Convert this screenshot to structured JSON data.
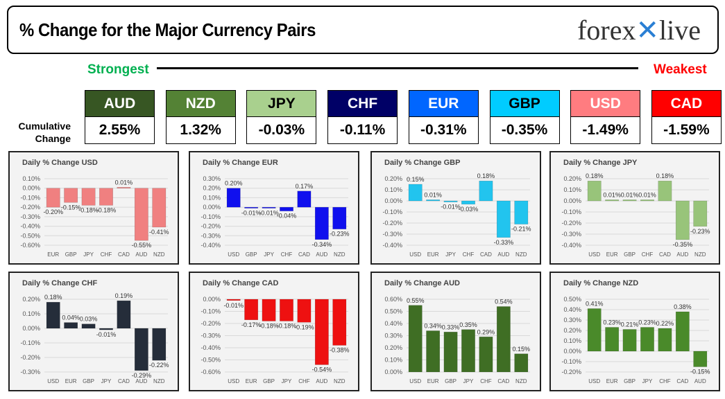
{
  "header": {
    "title": "% Change for the Major Currency Pairs",
    "logo_text": "forexlive"
  },
  "labels": {
    "strongest": "Strongest",
    "weakest": "Weakest",
    "cumulative_line1": "Cumulative",
    "cumulative_line2": "Change"
  },
  "currencies": [
    {
      "code": "AUD",
      "value": "2.55%",
      "color": "#375623",
      "text": "#ffffff"
    },
    {
      "code": "NZD",
      "value": "1.32%",
      "color": "#548235",
      "text": "#ffffff"
    },
    {
      "code": "JPY",
      "value": "-0.03%",
      "color": "#a9d08e",
      "text": "#000000"
    },
    {
      "code": "CHF",
      "value": "-0.11%",
      "color": "#000066",
      "text": "#ffffff"
    },
    {
      "code": "EUR",
      "value": "-0.31%",
      "color": "#0066ff",
      "text": "#ffffff"
    },
    {
      "code": "GBP",
      "value": "-0.35%",
      "color": "#00ccff",
      "text": "#000000"
    },
    {
      "code": "USD",
      "value": "-1.49%",
      "color": "#ff7c80",
      "text": "#ffffff"
    },
    {
      "code": "CAD",
      "value": "-1.59%",
      "color": "#ff0000",
      "text": "#ffffff"
    }
  ],
  "chart_data": [
    {
      "type": "bar",
      "title": "Daily % Change USD",
      "categories": [
        "EUR",
        "GBP",
        "JPY",
        "CHF",
        "CAD",
        "AUD",
        "NZD"
      ],
      "values": [
        -0.2,
        -0.15,
        -0.18,
        -0.18,
        0.01,
        -0.55,
        -0.41
      ],
      "labels": [
        "-0.20%",
        "-0.15%",
        "-0.18%",
        "-0.18%",
        "0.01%",
        "-0.55%",
        "-0.41%"
      ],
      "ylim": [
        -0.6,
        0.1
      ],
      "yticks": [
        "0.10%",
        "0.00%",
        "-0.10%",
        "-0.20%",
        "-0.30%",
        "-0.40%",
        "-0.50%",
        "-0.60%"
      ],
      "color": "#f08080",
      "grid": true
    },
    {
      "type": "bar",
      "title": "Daily % Change EUR",
      "categories": [
        "USD",
        "GBP",
        "JPY",
        "CHF",
        "CAD",
        "AUD",
        "NZD"
      ],
      "values": [
        0.2,
        -0.01,
        -0.01,
        -0.04,
        0.17,
        -0.34,
        -0.23
      ],
      "labels": [
        "0.20%",
        "-0.01%",
        "-0.01%",
        "-0.04%",
        "0.17%",
        "-0.34%",
        "-0.23%"
      ],
      "ylim": [
        -0.4,
        0.3
      ],
      "yticks": [
        "0.30%",
        "0.20%",
        "0.10%",
        "0.00%",
        "-0.10%",
        "-0.20%",
        "-0.30%",
        "-0.40%"
      ],
      "color": "#1010ee",
      "grid": true
    },
    {
      "type": "bar",
      "title": "Daily % Change GBP",
      "categories": [
        "USD",
        "EUR",
        "JPY",
        "CHF",
        "CAD",
        "AUD",
        "NZD"
      ],
      "values": [
        0.15,
        0.01,
        -0.01,
        -0.03,
        0.18,
        -0.33,
        -0.21
      ],
      "labels": [
        "0.15%",
        "0.01%",
        "-0.01%",
        "-0.03%",
        "0.18%",
        "-0.33%",
        "-0.21%"
      ],
      "ylim": [
        -0.4,
        0.2
      ],
      "yticks": [
        "0.20%",
        "0.10%",
        "0.00%",
        "-0.10%",
        "-0.20%",
        "-0.30%",
        "-0.40%"
      ],
      "color": "#22c4ee",
      "grid": true
    },
    {
      "type": "bar",
      "title": "Daily % Change JPY",
      "categories": [
        "USD",
        "EUR",
        "GBP",
        "CHF",
        "CAD",
        "AUD",
        "NZD"
      ],
      "values": [
        0.18,
        0.01,
        0.01,
        0.01,
        0.18,
        -0.35,
        -0.23
      ],
      "labels": [
        "0.18%",
        "0.01%",
        "0.01%",
        "0.01%",
        "0.18%",
        "-0.35%",
        "-0.23%"
      ],
      "ylim": [
        -0.4,
        0.2
      ],
      "yticks": [
        "0.20%",
        "0.10%",
        "0.00%",
        "-0.10%",
        "-0.20%",
        "-0.30%",
        "-0.40%"
      ],
      "color": "#98c47a",
      "grid": true
    },
    {
      "type": "bar",
      "title": "Daily % Change CHF",
      "categories": [
        "USD",
        "EUR",
        "GBP",
        "JPY",
        "CAD",
        "AUD",
        "NZD"
      ],
      "values": [
        0.18,
        0.04,
        0.03,
        -0.01,
        0.19,
        -0.29,
        -0.22
      ],
      "labels": [
        "0.18%",
        "0.04%",
        "0.03%",
        "-0.01%",
        "0.19%",
        "-0.29%",
        "-0.22%"
      ],
      "ylim": [
        -0.3,
        0.2
      ],
      "yticks": [
        "0.20%",
        "0.10%",
        "0.00%",
        "-0.10%",
        "-0.20%",
        "-0.30%"
      ],
      "color": "#252d3a",
      "grid": true
    },
    {
      "type": "bar",
      "title": "Daily % Change CAD",
      "categories": [
        "USD",
        "EUR",
        "GBP",
        "JPY",
        "CHF",
        "AUD",
        "NZD"
      ],
      "values": [
        -0.01,
        -0.17,
        -0.18,
        -0.18,
        -0.19,
        -0.54,
        -0.38
      ],
      "labels": [
        "-0.01%",
        "-0.17%",
        "-0.18%",
        "-0.18%",
        "-0.19%",
        "-0.54%",
        "-0.38%"
      ],
      "ylim": [
        -0.6,
        0.0
      ],
      "yticks": [
        "0.00%",
        "-0.10%",
        "-0.20%",
        "-0.30%",
        "-0.40%",
        "-0.50%",
        "-0.60%"
      ],
      "color": "#ee1111",
      "grid": true
    },
    {
      "type": "bar",
      "title": "Daily % Change AUD",
      "categories": [
        "USD",
        "EUR",
        "GBP",
        "JPY",
        "CHF",
        "CAD",
        "NZD"
      ],
      "values": [
        0.55,
        0.34,
        0.33,
        0.35,
        0.29,
        0.54,
        0.15
      ],
      "labels": [
        "0.55%",
        "0.34%",
        "0.33%",
        "0.35%",
        "0.29%",
        "0.54%",
        "0.15%"
      ],
      "ylim": [
        0.0,
        0.6
      ],
      "yticks": [
        "0.60%",
        "0.50%",
        "0.40%",
        "0.30%",
        "0.20%",
        "0.10%",
        "0.00%"
      ],
      "color": "#3f6e24",
      "grid": true
    },
    {
      "type": "bar",
      "title": "Daily % Change NZD",
      "categories": [
        "USD",
        "EUR",
        "GBP",
        "JPY",
        "CHF",
        "CAD",
        "AUD"
      ],
      "values": [
        0.41,
        0.23,
        0.21,
        0.23,
        0.22,
        0.38,
        -0.15
      ],
      "labels": [
        "0.41%",
        "0.23%",
        "0.21%",
        "0.23%",
        "0.22%",
        "0.38%",
        "-0.15%"
      ],
      "ylim": [
        -0.2,
        0.5
      ],
      "yticks": [
        "0.50%",
        "0.40%",
        "0.30%",
        "0.20%",
        "0.10%",
        "0.00%",
        "-0.10%",
        "-0.20%"
      ],
      "color": "#4a8a2a",
      "grid": true
    }
  ]
}
